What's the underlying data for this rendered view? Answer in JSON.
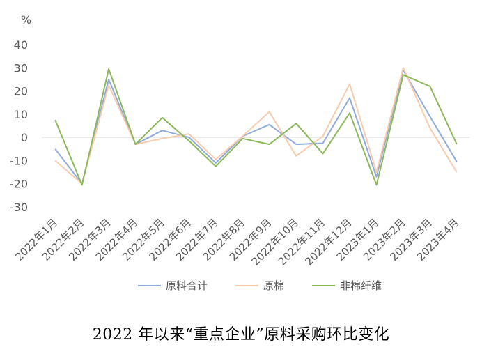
{
  "caption": "2022 年以来“重点企业”原料采购环比变化",
  "chart_data": {
    "type": "line",
    "unit_label": "%",
    "ylim": [
      -30,
      40
    ],
    "yticks": [
      40,
      30,
      20,
      10,
      0,
      -10,
      -20,
      -30
    ],
    "categories": [
      "2022年1月",
      "2022年2月",
      "2022年3月",
      "2022年4月",
      "2022年5月",
      "2022年6月",
      "2022年7月",
      "2022年8月",
      "2022年9月",
      "2022年10月",
      "2022年11月",
      "2022年12月",
      "2023年1月",
      "2023年2月",
      "2023年3月",
      "2023年4月"
    ],
    "legend_position": "bottom",
    "grid": false,
    "series": [
      {
        "name": "原料合计",
        "color": "#8faadc",
        "values": [
          -5,
          -20,
          25,
          -3,
          3,
          0,
          -11,
          0.5,
          5.5,
          -3,
          -2.5,
          17,
          -17,
          29,
          9,
          -10.5
        ]
      },
      {
        "name": "原棉",
        "color": "#f8cbad",
        "values": [
          -10,
          -20,
          22.5,
          -3,
          -0.5,
          1.5,
          -9.5,
          0.5,
          11,
          -8,
          0.5,
          23,
          -15,
          30,
          4,
          -15
        ]
      },
      {
        "name": "非棉纤维",
        "color": "#8cb85c",
        "values": [
          7.5,
          -20.5,
          29.5,
          -3,
          8.5,
          -1.5,
          -12.5,
          -0.5,
          -3,
          6,
          -7,
          10.5,
          -20.5,
          27,
          22,
          -3
        ]
      }
    ]
  }
}
